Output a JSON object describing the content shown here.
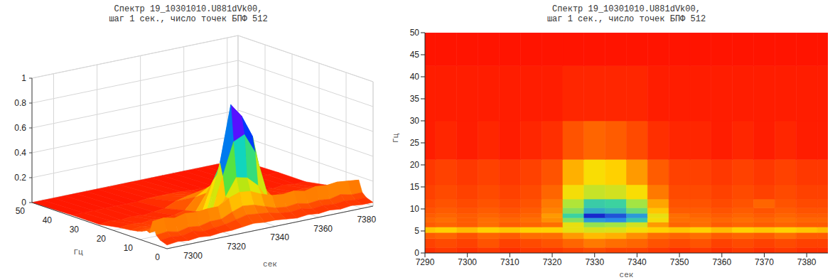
{
  "chart_data": [
    {
      "type": "surface",
      "title": "Спектр 19_10301010.U881dVk00,",
      "subtitle": "шаг 1 сек., число точек БПФ 512",
      "x_label": "сек",
      "y_label": "Гц",
      "x": [
        7290,
        7295,
        7300,
        7305,
        7310,
        7315,
        7320,
        7325,
        7330,
        7335,
        7340,
        7345,
        7350,
        7355,
        7360,
        7365,
        7370,
        7375,
        7380,
        7385
      ],
      "y": [
        0,
        2.5,
        4,
        5.3,
        6.5,
        7.5,
        8.5,
        9.5,
        11,
        13.5,
        17.5,
        25,
        35,
        50
      ],
      "z": [
        [
          0.03,
          0.04,
          0.03,
          0.04,
          0.03,
          0.04,
          0.04,
          0.05,
          0.06,
          0.05,
          0.05,
          0.04,
          0.03,
          0.04,
          0.03,
          0.04,
          0.03,
          0.04,
          0.03,
          0.03
        ],
        [
          0.05,
          0.06,
          0.05,
          0.07,
          0.05,
          0.06,
          0.07,
          0.09,
          0.11,
          0.1,
          0.09,
          0.07,
          0.06,
          0.07,
          0.05,
          0.06,
          0.05,
          0.06,
          0.05,
          0.05
        ],
        [
          0.08,
          0.09,
          0.07,
          0.09,
          0.08,
          0.1,
          0.1,
          0.14,
          0.17,
          0.16,
          0.13,
          0.1,
          0.09,
          0.1,
          0.08,
          0.09,
          0.08,
          0.1,
          0.08,
          0.08
        ],
        [
          0.18,
          0.19,
          0.17,
          0.19,
          0.18,
          0.19,
          0.19,
          0.24,
          0.27,
          0.26,
          0.22,
          0.19,
          0.18,
          0.19,
          0.17,
          0.19,
          0.18,
          0.19,
          0.18,
          0.17
        ],
        [
          0.08,
          0.09,
          0.08,
          0.1,
          0.08,
          0.09,
          0.1,
          0.24,
          0.38,
          0.36,
          0.28,
          0.14,
          0.09,
          0.1,
          0.08,
          0.09,
          0.08,
          0.09,
          0.08,
          0.08
        ],
        [
          0.09,
          0.1,
          0.08,
          0.1,
          0.09,
          0.1,
          0.13,
          0.4,
          0.66,
          0.7,
          0.54,
          0.22,
          0.1,
          0.1,
          0.09,
          0.1,
          0.09,
          0.1,
          0.09,
          0.09
        ],
        [
          0.08,
          0.09,
          0.08,
          0.09,
          0.08,
          0.09,
          0.14,
          0.5,
          0.95,
          0.84,
          0.66,
          0.24,
          0.1,
          0.09,
          0.08,
          0.09,
          0.08,
          0.09,
          0.08,
          0.08
        ],
        [
          0.07,
          0.08,
          0.07,
          0.08,
          0.07,
          0.08,
          0.12,
          0.4,
          0.62,
          0.58,
          0.44,
          0.18,
          0.08,
          0.08,
          0.07,
          0.08,
          0.07,
          0.08,
          0.07,
          0.07
        ],
        [
          0.06,
          0.07,
          0.06,
          0.07,
          0.06,
          0.07,
          0.11,
          0.34,
          0.52,
          0.5,
          0.36,
          0.15,
          0.07,
          0.07,
          0.06,
          0.07,
          0.09,
          0.07,
          0.06,
          0.06
        ],
        [
          0.05,
          0.06,
          0.05,
          0.06,
          0.05,
          0.06,
          0.09,
          0.22,
          0.3,
          0.28,
          0.21,
          0.11,
          0.06,
          0.06,
          0.05,
          0.06,
          0.05,
          0.06,
          0.05,
          0.05
        ],
        [
          0.04,
          0.05,
          0.04,
          0.05,
          0.04,
          0.05,
          0.07,
          0.16,
          0.21,
          0.19,
          0.14,
          0.08,
          0.05,
          0.05,
          0.04,
          0.05,
          0.04,
          0.05,
          0.04,
          0.04
        ],
        [
          0.01,
          0.02,
          0.01,
          0.02,
          0.01,
          0.02,
          0.03,
          0.07,
          0.09,
          0.08,
          0.06,
          0.03,
          0.02,
          0.02,
          0.01,
          0.02,
          0.01,
          0.02,
          0.01,
          0.01
        ],
        [
          0.01,
          0.01,
          0.01,
          0.01,
          0.01,
          0.01,
          0.01,
          0.02,
          0.02,
          0.02,
          0.02,
          0.01,
          0.01,
          0.01,
          0.01,
          0.01,
          0.01,
          0.01,
          0.01,
          0.01
        ],
        [
          0,
          0,
          0,
          0,
          0,
          0,
          0,
          0,
          0,
          0,
          0,
          0,
          0,
          0,
          0,
          0,
          0,
          0,
          0,
          0
        ]
      ],
      "xlim": [
        7290,
        7385
      ],
      "ylim": [
        0,
        50
      ],
      "zlim": [
        0,
        1
      ],
      "xticks": [
        7300,
        7320,
        7340,
        7360,
        7380
      ],
      "yticks": [
        0,
        10,
        20,
        30,
        40,
        50
      ],
      "zticks": [
        0,
        0.2,
        0.4,
        0.6,
        0.8,
        1
      ],
      "grid": true
    },
    {
      "type": "heatmap",
      "title": "Спектр 19_10301010.U881dVk00,",
      "subtitle": "шаг 1 сек., число точек БПФ 512",
      "x_label": "сек",
      "y_label": "Гц",
      "x": [
        7290,
        7295,
        7300,
        7305,
        7310,
        7315,
        7320,
        7325,
        7330,
        7335,
        7340,
        7345,
        7350,
        7355,
        7360,
        7365,
        7370,
        7375,
        7380,
        7385
      ],
      "y": [
        0,
        2.5,
        4,
        5.3,
        6.5,
        7.5,
        8.5,
        9.5,
        11,
        13.5,
        17.5,
        25,
        35,
        50
      ],
      "z": [
        [
          0.03,
          0.04,
          0.03,
          0.04,
          0.03,
          0.04,
          0.04,
          0.05,
          0.06,
          0.05,
          0.05,
          0.04,
          0.03,
          0.04,
          0.03,
          0.04,
          0.03,
          0.04,
          0.03,
          0.03
        ],
        [
          0.05,
          0.06,
          0.05,
          0.07,
          0.05,
          0.06,
          0.07,
          0.09,
          0.11,
          0.1,
          0.09,
          0.07,
          0.06,
          0.07,
          0.05,
          0.06,
          0.05,
          0.06,
          0.05,
          0.05
        ],
        [
          0.08,
          0.09,
          0.07,
          0.09,
          0.08,
          0.1,
          0.1,
          0.14,
          0.17,
          0.16,
          0.13,
          0.1,
          0.09,
          0.1,
          0.08,
          0.09,
          0.08,
          0.1,
          0.08,
          0.08
        ],
        [
          0.18,
          0.19,
          0.17,
          0.19,
          0.18,
          0.19,
          0.19,
          0.24,
          0.27,
          0.26,
          0.22,
          0.19,
          0.18,
          0.19,
          0.17,
          0.19,
          0.18,
          0.19,
          0.18,
          0.17
        ],
        [
          0.08,
          0.09,
          0.08,
          0.1,
          0.08,
          0.09,
          0.1,
          0.24,
          0.38,
          0.36,
          0.28,
          0.14,
          0.09,
          0.1,
          0.08,
          0.09,
          0.08,
          0.09,
          0.08,
          0.08
        ],
        [
          0.09,
          0.1,
          0.08,
          0.1,
          0.09,
          0.1,
          0.13,
          0.4,
          0.66,
          0.7,
          0.54,
          0.22,
          0.1,
          0.1,
          0.09,
          0.1,
          0.09,
          0.1,
          0.09,
          0.09
        ],
        [
          0.08,
          0.09,
          0.08,
          0.09,
          0.08,
          0.09,
          0.14,
          0.5,
          0.95,
          0.84,
          0.66,
          0.24,
          0.1,
          0.09,
          0.08,
          0.09,
          0.08,
          0.09,
          0.08,
          0.08
        ],
        [
          0.07,
          0.08,
          0.07,
          0.08,
          0.07,
          0.08,
          0.12,
          0.4,
          0.62,
          0.58,
          0.44,
          0.18,
          0.08,
          0.08,
          0.07,
          0.08,
          0.07,
          0.08,
          0.07,
          0.07
        ],
        [
          0.06,
          0.07,
          0.06,
          0.07,
          0.06,
          0.07,
          0.11,
          0.34,
          0.52,
          0.5,
          0.36,
          0.15,
          0.07,
          0.07,
          0.06,
          0.07,
          0.09,
          0.07,
          0.06,
          0.06
        ],
        [
          0.05,
          0.06,
          0.05,
          0.06,
          0.05,
          0.06,
          0.09,
          0.22,
          0.3,
          0.28,
          0.21,
          0.11,
          0.06,
          0.06,
          0.05,
          0.06,
          0.05,
          0.06,
          0.05,
          0.05
        ],
        [
          0.04,
          0.05,
          0.04,
          0.05,
          0.04,
          0.05,
          0.07,
          0.16,
          0.21,
          0.19,
          0.14,
          0.08,
          0.05,
          0.05,
          0.04,
          0.05,
          0.04,
          0.05,
          0.04,
          0.04
        ],
        [
          0.01,
          0.02,
          0.01,
          0.02,
          0.01,
          0.02,
          0.03,
          0.07,
          0.09,
          0.08,
          0.06,
          0.03,
          0.02,
          0.02,
          0.01,
          0.02,
          0.01,
          0.02,
          0.01,
          0.01
        ],
        [
          0.01,
          0.01,
          0.01,
          0.01,
          0.01,
          0.01,
          0.01,
          0.02,
          0.02,
          0.02,
          0.02,
          0.01,
          0.01,
          0.01,
          0.01,
          0.01,
          0.01,
          0.01,
          0.01,
          0.01
        ],
        [
          0,
          0,
          0,
          0,
          0,
          0,
          0,
          0,
          0,
          0,
          0,
          0,
          0,
          0,
          0,
          0,
          0,
          0,
          0,
          0
        ]
      ],
      "xlim": [
        7290,
        7385
      ],
      "ylim": [
        0,
        50
      ],
      "zlim": [
        0,
        1
      ],
      "xticks": [
        7290,
        7300,
        7310,
        7320,
        7330,
        7340,
        7350,
        7360,
        7370,
        7380
      ],
      "yticks": [
        0,
        5,
        10,
        15,
        20,
        25,
        30,
        35,
        40,
        45,
        50
      ],
      "grid": false
    }
  ]
}
